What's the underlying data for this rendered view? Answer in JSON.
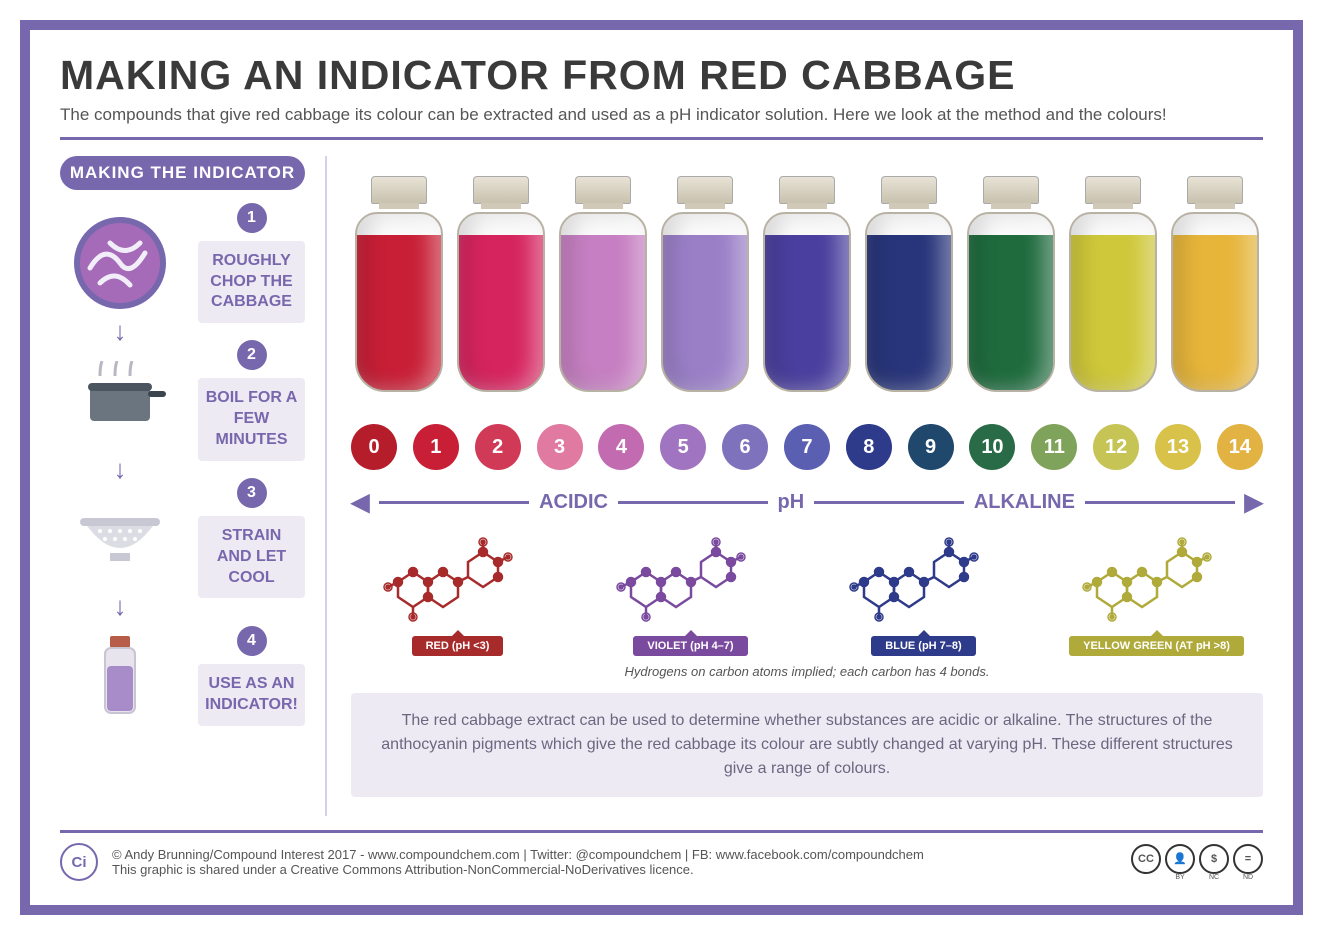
{
  "colors": {
    "accent": "#7768ae",
    "text_dark": "#3a3a3a",
    "panel_bg": "#edeaf3"
  },
  "title": "MAKING AN INDICATOR FROM RED CABBAGE",
  "subtitle": "The compounds that give red cabbage its colour can be extracted and used as a pH indicator solution. Here we look at the method and the colours!",
  "left": {
    "heading": "MAKING THE INDICATOR",
    "steps": [
      {
        "num": "1",
        "label": "ROUGHLY CHOP THE CABBAGE"
      },
      {
        "num": "2",
        "label": "BOIL FOR A FEW MINUTES"
      },
      {
        "num": "3",
        "label": "STRAIN AND LET COOL"
      },
      {
        "num": "4",
        "label": "USE AS AN INDICATOR!"
      }
    ]
  },
  "bottles": {
    "colors": [
      "#c81f36",
      "#d6245f",
      "#c67fc2",
      "#9a7fc7",
      "#4a3f9e",
      "#28357a",
      "#1f6b3e",
      "#cfc83a",
      "#e6b53a"
    ]
  },
  "ph_scale": {
    "dots": [
      {
        "n": "0",
        "c": "#b51d2b"
      },
      {
        "n": "1",
        "c": "#c81f36"
      },
      {
        "n": "2",
        "c": "#d13a56"
      },
      {
        "n": "3",
        "c": "#e07aa0"
      },
      {
        "n": "4",
        "c": "#c36bb0"
      },
      {
        "n": "5",
        "c": "#a074c0"
      },
      {
        "n": "6",
        "c": "#7e72bd"
      },
      {
        "n": "7",
        "c": "#5a5fb2"
      },
      {
        "n": "8",
        "c": "#2e3a8a"
      },
      {
        "n": "9",
        "c": "#20476c"
      },
      {
        "n": "10",
        "c": "#2a6b47"
      },
      {
        "n": "11",
        "c": "#7fa35a"
      },
      {
        "n": "12",
        "c": "#c5c454"
      },
      {
        "n": "13",
        "c": "#d8c24a"
      },
      {
        "n": "14",
        "c": "#e2b343"
      }
    ]
  },
  "axis": {
    "left": "ACIDIC",
    "mid": "pH",
    "right": "ALKALINE"
  },
  "molecules": [
    {
      "color": "#a82b2b",
      "label": "RED (pH <3)"
    },
    {
      "color": "#7a4a9e",
      "label": "VIOLET (pH 4–7)"
    },
    {
      "color": "#2e3a8a",
      "label": "BLUE (pH 7–8)"
    },
    {
      "color": "#b0aa3a",
      "label": "YELLOW GREEN (AT pH >8)"
    }
  ],
  "mol_note": "Hydrogens on carbon atoms implied; each carbon has 4 bonds.",
  "explain": "The red cabbage extract can be used to determine whether substances are acidic or alkaline. The structures of the anthocyanin pigments which give the red cabbage its colour are subtly changed at varying pH. These different structures give a range of colours.",
  "footer": {
    "line1": "© Andy Brunning/Compound Interest 2017 - www.compoundchem.com | Twitter: @compoundchem | FB: www.facebook.com/compoundchem",
    "line2": "This graphic is shared under a Creative Commons Attribution-NonCommercial-NoDerivatives licence.",
    "logo": "Ci",
    "cc": [
      "cc",
      "BY",
      "NC",
      "ND"
    ]
  }
}
